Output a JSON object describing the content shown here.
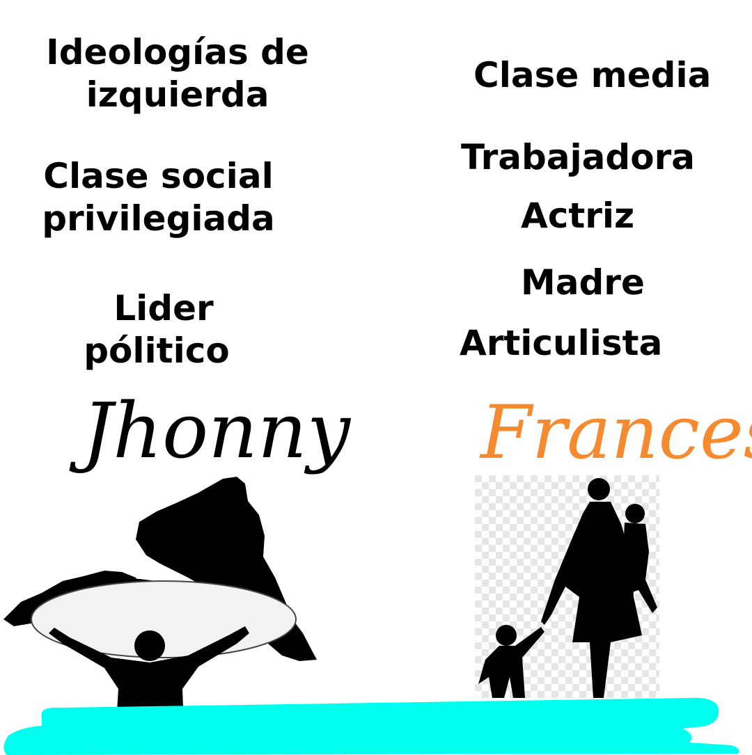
{
  "left": {
    "ideologies": [
      "Ideologías de",
      "izquierda"
    ],
    "social_class": [
      "Clase social",
      "privilegiada"
    ],
    "role": [
      "Lider",
      "pólitico"
    ],
    "name": "Jhonny"
  },
  "right": {
    "class": "Clase media",
    "roles": [
      "Trabajadora",
      "Actriz",
      "Madre",
      "Articulista"
    ],
    "name": "Frances"
  },
  "colors": {
    "text": "#000000",
    "name_right": "#f58a2e",
    "brush": "#00ffee",
    "background": "#ffffff"
  },
  "icons": {
    "left_image": "person-holding-south-america-map-silhouette",
    "right_image": "mother-with-children-silhouette"
  }
}
